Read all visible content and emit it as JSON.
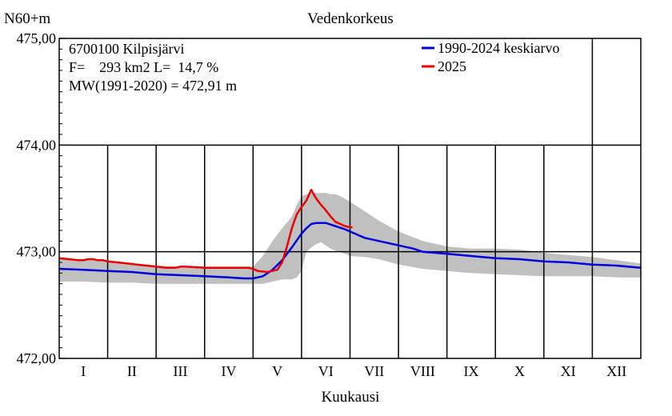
{
  "chart_data": {
    "type": "line",
    "title": "Vedenkorkeus",
    "ylabel": "N60+m",
    "xlabel": "Kuukausi",
    "ylim": [
      472.0,
      475.0
    ],
    "yticks": [
      "475,00",
      "474,00",
      "473,00",
      "472,00"
    ],
    "ytick_values": [
      475.0,
      474.0,
      473.0,
      472.0
    ],
    "categories": [
      "I",
      "II",
      "III",
      "IV",
      "V",
      "VI",
      "VII",
      "VIII",
      "IX",
      "X",
      "XI",
      "XII"
    ],
    "grid": true,
    "legend_position": "top-right",
    "info": [
      "6700100 Kilpisjärvi",
      "F=    293 km2 L=  14,7 %",
      "MW(1991-2020) = 472,91 m"
    ],
    "colors": {
      "mean": "#0000dd",
      "current": "#ee0000",
      "band": "#c0c0c0"
    },
    "band": {
      "x": [
        0,
        0.5,
        1.0,
        1.5,
        2.0,
        2.5,
        3.0,
        3.5,
        4.0,
        4.2,
        4.4,
        4.6,
        4.8,
        4.9,
        5.0,
        5.1,
        5.2,
        5.3,
        5.4,
        5.5,
        5.6,
        5.7,
        5.8,
        6.0,
        6.3,
        6.6,
        7.0,
        7.5,
        8.0,
        8.5,
        9.0,
        9.5,
        10.0,
        10.5,
        11.0,
        11.5,
        12.0
      ],
      "upper": [
        472.94,
        472.93,
        472.91,
        472.88,
        472.87,
        472.86,
        472.86,
        472.86,
        472.86,
        472.96,
        473.1,
        473.22,
        473.33,
        473.44,
        473.52,
        473.54,
        473.55,
        473.55,
        473.55,
        473.55,
        473.54,
        473.54,
        473.52,
        473.47,
        473.38,
        473.29,
        473.19,
        473.1,
        473.05,
        473.03,
        473.03,
        473.02,
        472.99,
        472.97,
        472.95,
        472.92,
        472.89
      ],
      "lower": [
        472.72,
        472.72,
        472.71,
        472.71,
        472.7,
        472.7,
        472.7,
        472.7,
        472.7,
        472.7,
        472.72,
        472.74,
        472.74,
        472.76,
        472.82,
        473.0,
        473.04,
        473.07,
        473.09,
        473.06,
        473.03,
        473.01,
        473.0,
        472.96,
        472.95,
        472.93,
        472.88,
        472.84,
        472.82,
        472.8,
        472.79,
        472.78,
        472.77,
        472.77,
        472.77,
        472.76,
        472.76
      ]
    },
    "series": [
      {
        "name": "1990-2024 keskiarvo",
        "x": [
          0,
          0.5,
          1.0,
          1.5,
          2.0,
          2.5,
          3.0,
          3.5,
          3.8,
          4.0,
          4.2,
          4.4,
          4.6,
          4.8,
          5.0,
          5.1,
          5.2,
          5.3,
          5.5,
          5.7,
          5.9,
          6.1,
          6.3,
          6.6,
          7.0,
          7.3,
          7.5,
          8.0,
          8.5,
          9.0,
          9.5,
          10.0,
          10.5,
          11.0,
          11.5,
          12.0
        ],
        "y": [
          472.84,
          472.83,
          472.82,
          472.81,
          472.79,
          472.78,
          472.77,
          472.76,
          472.75,
          472.75,
          472.77,
          472.83,
          472.92,
          473.04,
          473.17,
          473.22,
          473.26,
          473.27,
          473.27,
          473.24,
          473.21,
          473.17,
          473.13,
          473.1,
          473.06,
          473.03,
          473.0,
          472.98,
          472.96,
          472.94,
          472.93,
          472.91,
          472.9,
          472.88,
          472.87,
          472.85
        ]
      },
      {
        "name": "2025",
        "x": [
          0,
          0.2,
          0.4,
          0.5,
          0.6,
          0.7,
          0.8,
          0.9,
          1.0,
          1.2,
          1.4,
          1.6,
          1.8,
          2.0,
          2.2,
          2.3,
          2.4,
          2.5,
          2.6,
          3.0,
          3.5,
          3.9,
          4.0,
          4.1,
          4.3,
          4.5,
          4.6,
          4.7,
          4.8,
          4.9,
          5.0,
          5.1,
          5.2,
          5.3,
          5.4,
          5.5,
          5.6,
          5.7,
          5.8,
          5.9,
          6.0,
          6.05
        ],
        "y": [
          472.94,
          472.93,
          472.92,
          472.92,
          472.93,
          472.93,
          472.92,
          472.92,
          472.91,
          472.9,
          472.89,
          472.88,
          472.87,
          472.86,
          472.85,
          472.85,
          472.85,
          472.86,
          472.86,
          472.85,
          472.85,
          472.85,
          472.84,
          472.82,
          472.81,
          472.83,
          472.9,
          473.05,
          473.22,
          473.35,
          473.42,
          473.48,
          473.58,
          473.5,
          473.44,
          473.39,
          473.33,
          473.28,
          473.26,
          473.24,
          473.23,
          473.23
        ]
      }
    ]
  }
}
